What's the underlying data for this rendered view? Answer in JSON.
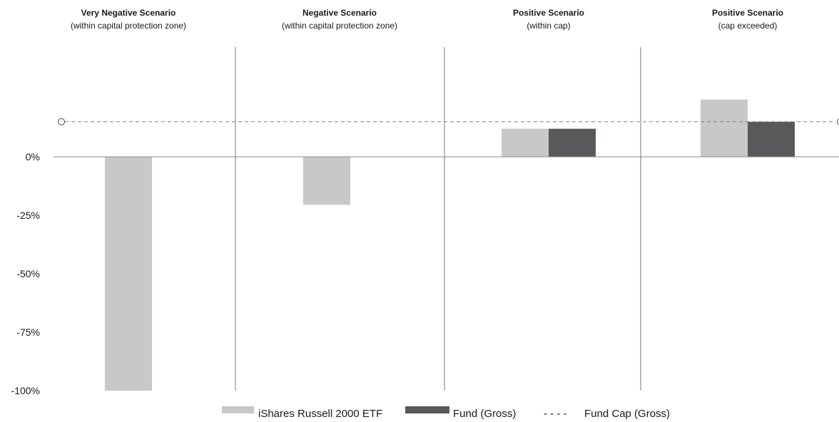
{
  "chart_data": {
    "type": "bar",
    "categories": [
      {
        "title": "Very Negative Scenario",
        "subtitle": "(within capital protection zone)"
      },
      {
        "title": "Negative Scenario",
        "subtitle": "(within capital protection zone)"
      },
      {
        "title": "Positive Scenario",
        "subtitle": "(within cap)"
      },
      {
        "title": "Positive Scenario",
        "subtitle": "(cap exceeded)"
      }
    ],
    "series": [
      {
        "name": "iShares Russell 2000 ETF",
        "color": "#c8c8c9",
        "values": [
          -100,
          -20.5,
          12,
          24.5
        ]
      },
      {
        "name": "Fund (Gross)",
        "color": "#58595b",
        "values": [
          null,
          null,
          12,
          15
        ]
      }
    ],
    "cap_line": {
      "name": "Fund Cap (Gross)",
      "value": 15,
      "color": "#808080",
      "style": "dashed"
    },
    "legend_line_glyph": "- - - -",
    "yticks": [
      0,
      -25,
      -50,
      -75,
      -100
    ],
    "ytick_labels": [
      "0%",
      "-25%",
      "-50%",
      "-75%",
      "-100%"
    ],
    "ylim": [
      -100,
      40
    ],
    "legend_position": "bottom-center",
    "grid": false
  }
}
